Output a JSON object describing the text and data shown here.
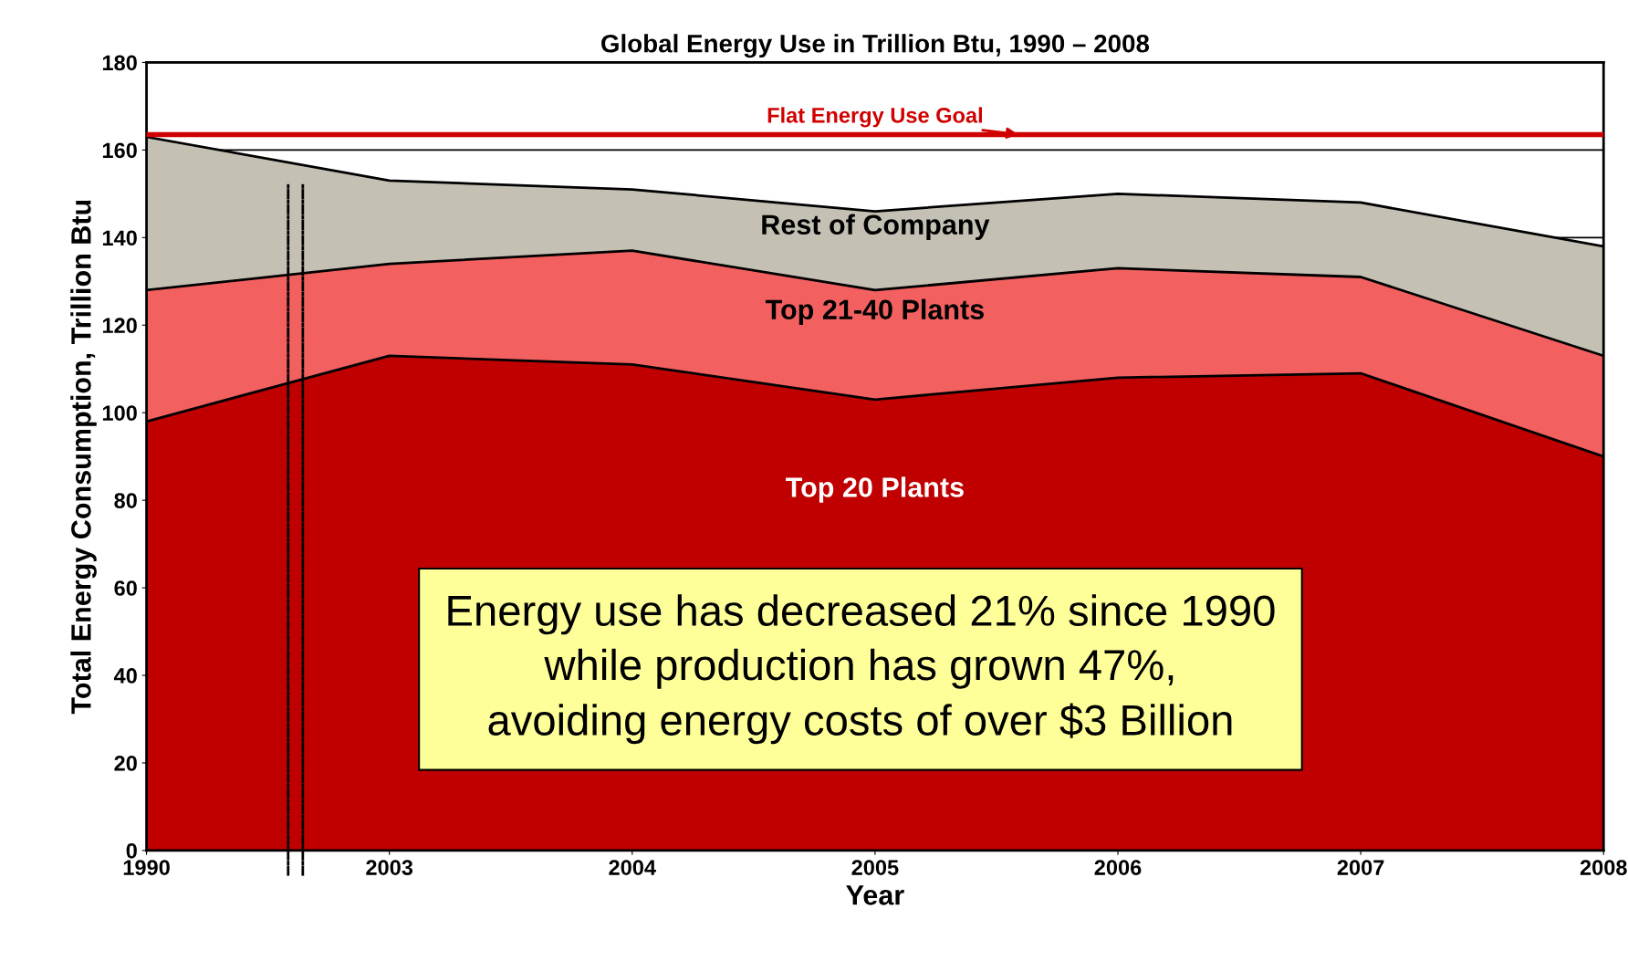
{
  "chart_data": {
    "type": "area",
    "stacked": true,
    "title": "Global Energy Use in Trillion Btu, 1990 – 2008",
    "xlabel": "Year",
    "ylabel": "Total Energy Consumption, Trillion Btu",
    "categories": [
      "1990",
      "2003",
      "2004",
      "2005",
      "2006",
      "2007",
      "2008"
    ],
    "series": [
      {
        "name": "Top 20 Plants",
        "color": "#c00000",
        "values": [
          98,
          113,
          111,
          103,
          108,
          109,
          90
        ]
      },
      {
        "name": "Top 21-40 Plants",
        "color": "#f26060",
        "values": [
          30,
          21,
          26,
          25,
          25,
          22,
          23
        ]
      },
      {
        "name": "Rest of Company",
        "color": "#c4c0b4",
        "values": [
          35,
          19,
          14,
          18,
          17,
          17,
          25
        ]
      }
    ],
    "ylim": [
      0,
      180
    ],
    "yticks": [
      0,
      20,
      40,
      60,
      80,
      100,
      120,
      140,
      160,
      180
    ],
    "grid": "y",
    "ref_lines": [
      {
        "axis": "y",
        "value": 163.5,
        "label": "Flat Energy Use Goal",
        "color": "#d00000"
      }
    ],
    "annotations": [
      "Energy use has decreased 21% since 1990\nwhile production has grown 47%,\navoiding energy costs of over $3 Billion"
    ]
  }
}
